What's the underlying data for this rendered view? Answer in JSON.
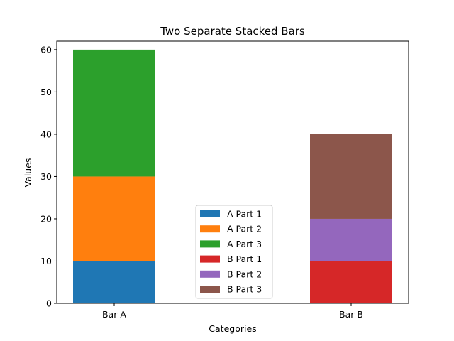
{
  "chart_data": {
    "type": "bar",
    "stacked": true,
    "title": "Two Separate Stacked Bars",
    "xlabel": "Categories",
    "ylabel": "Values",
    "categories": [
      "Bar A",
      "Bar B"
    ],
    "ylim": [
      0,
      62
    ],
    "yticks": [
      0,
      10,
      20,
      30,
      40,
      50,
      60
    ],
    "grid": false,
    "legend_position": "lower-center",
    "series": [
      {
        "name": "A Part 1",
        "category": "Bar A",
        "value": 10,
        "color": "#1f77b4"
      },
      {
        "name": "A Part 2",
        "category": "Bar A",
        "value": 20,
        "color": "#ff7f0e"
      },
      {
        "name": "A Part 3",
        "category": "Bar A",
        "value": 30,
        "color": "#2ca02c"
      },
      {
        "name": "B Part 1",
        "category": "Bar B",
        "value": 10,
        "color": "#d62728"
      },
      {
        "name": "B Part 2",
        "category": "Bar B",
        "value": 10,
        "color": "#9467bd"
      },
      {
        "name": "B Part 3",
        "category": "Bar B",
        "value": 20,
        "color": "#8c564b"
      }
    ]
  }
}
